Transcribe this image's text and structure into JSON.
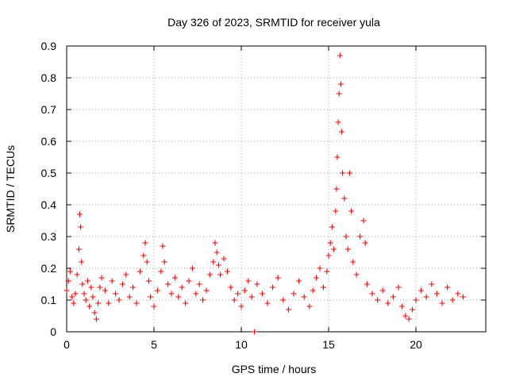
{
  "chart_data": {
    "type": "scatter",
    "title": "Day 326 of 2023, SRMTID for receiver yula",
    "xlabel": "GPS time / hours",
    "ylabel": "SRMTID / TECUs",
    "xlim": [
      0,
      24
    ],
    "ylim": [
      0,
      0.9
    ],
    "xticks": [
      0,
      5,
      10,
      15,
      20
    ],
    "yticks": [
      0,
      0.1,
      0.2,
      0.3,
      0.4,
      0.5,
      0.6,
      0.7,
      0.8,
      0.9
    ],
    "xtick_labels": [
      "0",
      "5",
      "10",
      "15",
      "20"
    ],
    "ytick_labels": [
      "0",
      "0.1",
      "0.2",
      "0.3",
      "0.4",
      "0.5",
      "0.6",
      "0.7",
      "0.8",
      "0.9"
    ],
    "grid": true,
    "marker": "+",
    "series": [
      {
        "name": "SRMTID",
        "color": "#ff0000",
        "x": [
          0.0,
          0.1,
          0.2,
          0.3,
          0.4,
          0.5,
          0.6,
          0.7,
          0.75,
          0.8,
          0.85,
          0.9,
          1.0,
          1.1,
          1.2,
          1.3,
          1.4,
          1.5,
          1.6,
          1.7,
          1.8,
          1.9,
          2.0,
          2.2,
          2.4,
          2.6,
          2.8,
          3.0,
          3.2,
          3.4,
          3.6,
          3.8,
          4.0,
          4.2,
          4.4,
          4.5,
          4.6,
          4.7,
          4.8,
          5.0,
          5.2,
          5.4,
          5.5,
          5.6,
          5.8,
          6.0,
          6.2,
          6.4,
          6.6,
          6.8,
          7.0,
          7.2,
          7.4,
          7.6,
          7.8,
          8.0,
          8.2,
          8.4,
          8.5,
          8.6,
          8.7,
          8.8,
          9.0,
          9.2,
          9.4,
          9.6,
          9.8,
          10.0,
          10.2,
          10.4,
          10.6,
          10.75,
          10.9,
          11.2,
          11.5,
          11.8,
          12.1,
          12.4,
          12.7,
          13.0,
          13.3,
          13.6,
          13.9,
          14.1,
          14.3,
          14.5,
          14.7,
          14.9,
          15.0,
          15.1,
          15.2,
          15.3,
          15.4,
          15.45,
          15.5,
          15.55,
          15.6,
          15.65,
          15.7,
          15.75,
          15.8,
          15.9,
          16.0,
          16.1,
          16.2,
          16.3,
          16.4,
          16.6,
          16.8,
          17.0,
          17.1,
          17.2,
          17.5,
          17.8,
          18.1,
          18.4,
          18.7,
          19.0,
          19.2,
          19.4,
          19.6,
          19.8,
          20.0,
          20.3,
          20.6,
          20.9,
          21.2,
          21.5,
          21.8,
          22.1,
          22.4,
          22.7
        ],
        "y": [
          0.13,
          0.16,
          0.19,
          0.11,
          0.09,
          0.12,
          0.18,
          0.26,
          0.37,
          0.33,
          0.22,
          0.15,
          0.12,
          0.1,
          0.16,
          0.08,
          0.14,
          0.11,
          0.06,
          0.04,
          0.09,
          0.14,
          0.17,
          0.13,
          0.09,
          0.16,
          0.12,
          0.1,
          0.15,
          0.18,
          0.11,
          0.14,
          0.09,
          0.19,
          0.24,
          0.28,
          0.22,
          0.16,
          0.11,
          0.08,
          0.13,
          0.19,
          0.27,
          0.22,
          0.15,
          0.12,
          0.17,
          0.11,
          0.14,
          0.09,
          0.16,
          0.2,
          0.12,
          0.15,
          0.1,
          0.13,
          0.18,
          0.22,
          0.28,
          0.25,
          0.21,
          0.18,
          0.23,
          0.19,
          0.14,
          0.1,
          0.12,
          0.08,
          0.13,
          0.16,
          0.11,
          0.0,
          0.15,
          0.12,
          0.09,
          0.14,
          0.17,
          0.1,
          0.07,
          0.12,
          0.16,
          0.11,
          0.08,
          0.13,
          0.17,
          0.2,
          0.14,
          0.19,
          0.24,
          0.28,
          0.33,
          0.26,
          0.38,
          0.45,
          0.55,
          0.66,
          0.75,
          0.87,
          0.78,
          0.63,
          0.5,
          0.42,
          0.3,
          0.26,
          0.5,
          0.38,
          0.22,
          0.18,
          0.3,
          0.35,
          0.28,
          0.15,
          0.12,
          0.1,
          0.13,
          0.09,
          0.11,
          0.14,
          0.08,
          0.05,
          0.04,
          0.07,
          0.1,
          0.13,
          0.11,
          0.15,
          0.12,
          0.09,
          0.14,
          0.1,
          0.12,
          0.11
        ]
      }
    ]
  }
}
